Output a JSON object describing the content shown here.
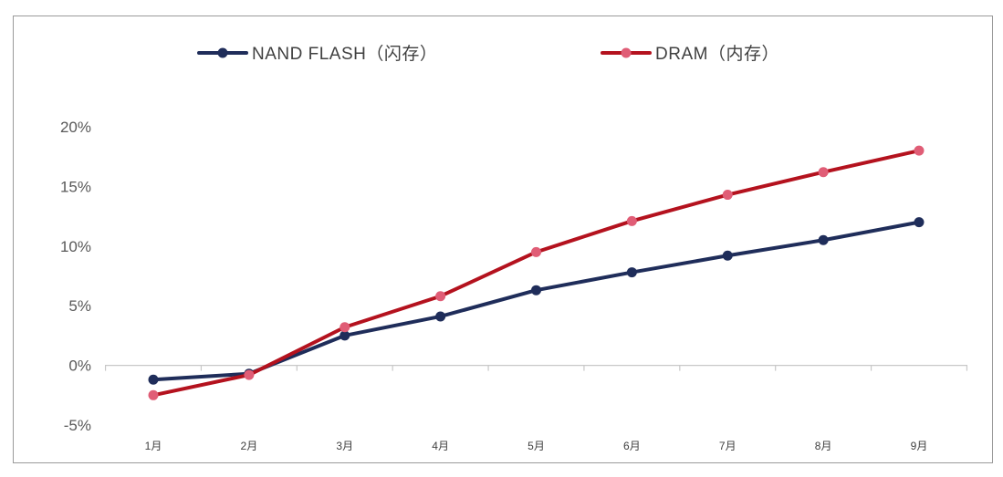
{
  "chart_data": {
    "type": "line",
    "categories": [
      "1月",
      "2月",
      "3月",
      "4月",
      "5月",
      "6月",
      "7月",
      "8月",
      "9月"
    ],
    "series": [
      {
        "name": "NAND FLASH（闪存）",
        "color": "#1f2d5a",
        "values": [
          -1.2,
          -0.7,
          2.5,
          4.1,
          6.3,
          7.8,
          9.2,
          10.5,
          12.0
        ]
      },
      {
        "name": "DRAM（内存）",
        "color": "#b4121e",
        "marker_color": "#e05d76",
        "values": [
          -2.5,
          -0.8,
          3.2,
          5.8,
          9.5,
          12.1,
          14.3,
          16.2,
          18.0
        ]
      }
    ],
    "y_ticks": [
      "20%",
      "15%",
      "10%",
      "5%",
      "0%",
      "-5%"
    ],
    "ylim": [
      -5,
      20
    ],
    "grid": false,
    "legend_position": "top"
  }
}
